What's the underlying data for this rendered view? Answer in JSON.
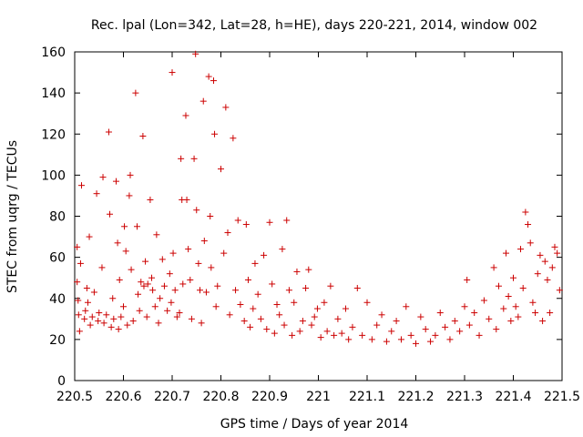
{
  "chart_data": {
    "type": "scatter",
    "title": "Rec. lpal (Lon=342, Lat=28, h=HE), days 220-221, 2014, window 002",
    "xlabel": "GPS time / Days of year 2014",
    "ylabel": "STEC from uqrg / TECUs",
    "xlim": [
      220.5,
      221.5
    ],
    "ylim": [
      0,
      160
    ],
    "xticks": [
      "220.5",
      "220.6",
      "220.7",
      "220.8",
      "220.9",
      "221",
      "221.1",
      "221.2",
      "221.3",
      "221.4",
      "221.5"
    ],
    "yticks": [
      "0",
      "20",
      "40",
      "60",
      "80",
      "100",
      "120",
      "140",
      "160"
    ],
    "marker": "+",
    "color": "#cc0000",
    "points": [
      [
        220.505,
        65
      ],
      [
        220.505,
        48
      ],
      [
        220.507,
        39
      ],
      [
        220.508,
        32
      ],
      [
        220.51,
        24
      ],
      [
        220.512,
        57
      ],
      [
        220.514,
        95
      ],
      [
        220.52,
        30
      ],
      [
        220.522,
        34
      ],
      [
        220.525,
        45
      ],
      [
        220.527,
        38
      ],
      [
        220.53,
        70
      ],
      [
        220.532,
        27
      ],
      [
        220.536,
        31
      ],
      [
        220.54,
        43
      ],
      [
        220.545,
        91
      ],
      [
        220.548,
        29
      ],
      [
        220.55,
        33
      ],
      [
        220.556,
        55
      ],
      [
        220.558,
        99
      ],
      [
        220.56,
        28
      ],
      [
        220.565,
        32
      ],
      [
        220.57,
        121
      ],
      [
        220.572,
        81
      ],
      [
        220.575,
        26
      ],
      [
        220.578,
        40
      ],
      [
        220.58,
        30
      ],
      [
        220.585,
        97
      ],
      [
        220.588,
        67
      ],
      [
        220.59,
        25
      ],
      [
        220.592,
        49
      ],
      [
        220.595,
        31
      ],
      [
        220.6,
        36
      ],
      [
        220.602,
        75
      ],
      [
        220.605,
        63
      ],
      [
        220.608,
        27
      ],
      [
        220.612,
        90
      ],
      [
        220.614,
        100
      ],
      [
        220.616,
        54
      ],
      [
        220.62,
        29
      ],
      [
        220.625,
        140
      ],
      [
        220.628,
        75
      ],
      [
        220.63,
        42
      ],
      [
        220.633,
        34
      ],
      [
        220.636,
        48
      ],
      [
        220.64,
        119
      ],
      [
        220.642,
        46
      ],
      [
        220.645,
        58
      ],
      [
        220.648,
        31
      ],
      [
        220.65,
        47
      ],
      [
        220.655,
        88
      ],
      [
        220.658,
        50
      ],
      [
        220.66,
        44
      ],
      [
        220.665,
        36
      ],
      [
        220.668,
        71
      ],
      [
        220.672,
        28
      ],
      [
        220.675,
        40
      ],
      [
        220.68,
        59
      ],
      [
        220.684,
        46
      ],
      [
        220.69,
        34
      ],
      [
        220.695,
        52
      ],
      [
        220.698,
        38
      ],
      [
        220.7,
        150
      ],
      [
        220.702,
        62
      ],
      [
        220.706,
        44
      ],
      [
        220.71,
        31
      ],
      [
        220.715,
        33
      ],
      [
        220.718,
        108
      ],
      [
        220.72,
        88
      ],
      [
        220.722,
        47
      ],
      [
        220.728,
        129
      ],
      [
        220.73,
        88
      ],
      [
        220.733,
        64
      ],
      [
        220.737,
        49
      ],
      [
        220.74,
        30
      ],
      [
        220.745,
        108
      ],
      [
        220.748,
        159
      ],
      [
        220.75,
        83
      ],
      [
        220.754,
        57
      ],
      [
        220.757,
        44
      ],
      [
        220.76,
        28
      ],
      [
        220.764,
        136
      ],
      [
        220.766,
        68
      ],
      [
        220.77,
        43
      ],
      [
        220.775,
        148
      ],
      [
        220.778,
        80
      ],
      [
        220.78,
        55
      ],
      [
        220.785,
        146
      ],
      [
        220.787,
        120
      ],
      [
        220.79,
        36
      ],
      [
        220.793,
        46
      ],
      [
        220.8,
        103
      ],
      [
        220.806,
        62
      ],
      [
        220.81,
        133
      ],
      [
        220.814,
        72
      ],
      [
        220.818,
        32
      ],
      [
        220.825,
        118
      ],
      [
        220.83,
        44
      ],
      [
        220.835,
        78
      ],
      [
        220.84,
        37
      ],
      [
        220.848,
        29
      ],
      [
        220.852,
        76
      ],
      [
        220.856,
        49
      ],
      [
        220.86,
        26
      ],
      [
        220.866,
        35
      ],
      [
        220.87,
        57
      ],
      [
        220.876,
        42
      ],
      [
        220.882,
        30
      ],
      [
        220.888,
        61
      ],
      [
        220.894,
        25
      ],
      [
        220.9,
        77
      ],
      [
        220.905,
        47
      ],
      [
        220.91,
        23
      ],
      [
        220.915,
        37
      ],
      [
        220.92,
        32
      ],
      [
        220.926,
        64
      ],
      [
        220.93,
        27
      ],
      [
        220.935,
        78
      ],
      [
        220.94,
        44
      ],
      [
        220.946,
        22
      ],
      [
        220.95,
        38
      ],
      [
        220.956,
        53
      ],
      [
        220.962,
        24
      ],
      [
        220.968,
        29
      ],
      [
        220.974,
        45
      ],
      [
        220.98,
        54
      ],
      [
        220.986,
        27
      ],
      [
        220.992,
        31
      ],
      [
        220.998,
        35
      ],
      [
        221.005,
        21
      ],
      [
        221.012,
        38
      ],
      [
        221.018,
        24
      ],
      [
        221.025,
        46
      ],
      [
        221.032,
        22
      ],
      [
        221.04,
        30
      ],
      [
        221.048,
        23
      ],
      [
        221.056,
        35
      ],
      [
        221.062,
        20
      ],
      [
        221.07,
        26
      ],
      [
        221.08,
        45
      ],
      [
        221.09,
        22
      ],
      [
        221.1,
        38
      ],
      [
        221.11,
        20
      ],
      [
        221.12,
        27
      ],
      [
        221.13,
        32
      ],
      [
        221.14,
        19
      ],
      [
        221.15,
        24
      ],
      [
        221.16,
        29
      ],
      [
        221.17,
        20
      ],
      [
        221.18,
        36
      ],
      [
        221.19,
        22
      ],
      [
        221.2,
        18
      ],
      [
        221.21,
        31
      ],
      [
        221.22,
        25
      ],
      [
        221.23,
        19
      ],
      [
        221.24,
        22
      ],
      [
        221.25,
        33
      ],
      [
        221.26,
        26
      ],
      [
        221.27,
        20
      ],
      [
        221.28,
        29
      ],
      [
        221.29,
        24
      ],
      [
        221.3,
        36
      ],
      [
        221.305,
        49
      ],
      [
        221.31,
        27
      ],
      [
        221.32,
        33
      ],
      [
        221.33,
        22
      ],
      [
        221.34,
        39
      ],
      [
        221.35,
        30
      ],
      [
        221.36,
        55
      ],
      [
        221.365,
        25
      ],
      [
        221.37,
        46
      ],
      [
        221.38,
        35
      ],
      [
        221.385,
        62
      ],
      [
        221.39,
        41
      ],
      [
        221.395,
        29
      ],
      [
        221.4,
        50
      ],
      [
        221.405,
        36
      ],
      [
        221.41,
        31
      ],
      [
        221.415,
        64
      ],
      [
        221.42,
        45
      ],
      [
        221.425,
        82
      ],
      [
        221.43,
        76
      ],
      [
        221.435,
        67
      ],
      [
        221.44,
        38
      ],
      [
        221.445,
        33
      ],
      [
        221.45,
        52
      ],
      [
        221.455,
        61
      ],
      [
        221.46,
        29
      ],
      [
        221.465,
        58
      ],
      [
        221.47,
        49
      ],
      [
        221.475,
        33
      ],
      [
        221.48,
        55
      ],
      [
        221.485,
        65
      ],
      [
        221.49,
        62
      ],
      [
        221.495,
        44
      ]
    ]
  }
}
